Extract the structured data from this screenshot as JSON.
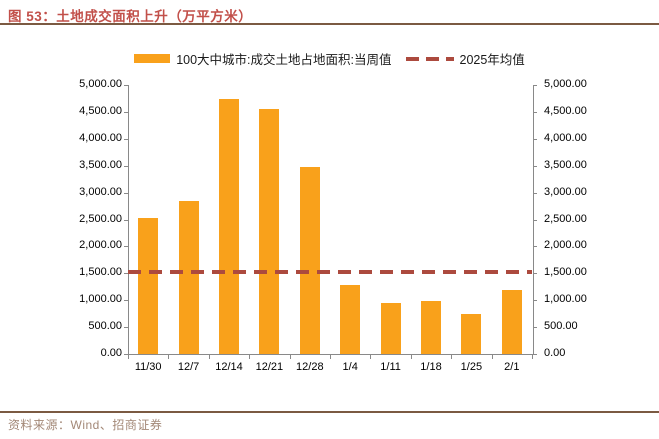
{
  "header": {
    "title": "图 53：土地成交面积上升（万平方米）"
  },
  "legend": {
    "bar_label": "100大中城市:成交土地占地面积:当周值",
    "line_label": "2025年均值"
  },
  "footer": {
    "source": "资料来源：Wind、招商证券"
  },
  "colors": {
    "bar": "#F9A11B",
    "avg_line": "#AC4A3E",
    "title_text": "#C2504A",
    "rule": "#7B5A42",
    "axis": "#898989",
    "source_text": "#A38877"
  },
  "chart_data": {
    "type": "bar",
    "title": "图 53：土地成交面积上升（万平方米）",
    "categories": [
      "11/30",
      "12/7",
      "12/14",
      "12/21",
      "12/28",
      "1/4",
      "1/11",
      "1/18",
      "1/25",
      "2/1"
    ],
    "series": [
      {
        "name": "100大中城市:成交土地占地面积:当周值",
        "type": "bar",
        "color": "#F9A11B",
        "values": [
          2530,
          2840,
          4740,
          4550,
          3470,
          1280,
          940,
          990,
          750,
          1190
        ]
      },
      {
        "name": "2025年均值",
        "type": "dashed_line",
        "color": "#AC4A3E",
        "value": 1520
      }
    ],
    "xlabel": "",
    "ylabel": "",
    "ylim": [
      0,
      5000
    ],
    "y_tick_step": 500,
    "y_tick_labels": [
      "0.00",
      "500.00",
      "1,000.00",
      "1,500.00",
      "2,000.00",
      "2,500.00",
      "3,000.00",
      "3,500.00",
      "4,000.00",
      "4,500.00",
      "5,000.00"
    ],
    "dual_axis": true,
    "grid": false,
    "legend_position": "top"
  }
}
